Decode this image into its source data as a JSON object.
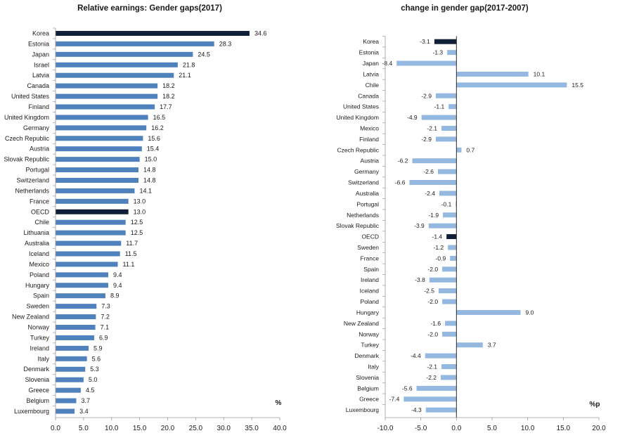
{
  "chart_data": [
    {
      "type": "bar",
      "orientation": "horizontal",
      "title": "Relative earnings: Gender gaps(2017)",
      "unit_label": "%",
      "categories": [
        "Korea",
        "Estonia",
        "Japan",
        "Israel",
        "Latvia",
        "Canada",
        "United States",
        "Finland",
        "United Kingdom",
        "Germany",
        "Czech Republic",
        "Austria",
        "Slovak Republic",
        "Portugal",
        "Switzerland",
        "Netherlands",
        "France",
        "OECD",
        "Chile",
        "Lithuania",
        "Australia",
        "Iceland",
        "Mexico",
        "Poland",
        "Hungary",
        "Spain",
        "Sweden",
        "New Zealand",
        "Norway",
        "Turkey",
        "Ireland",
        "Italy",
        "Denmark",
        "Slovenia",
        "Greece",
        "Belgium",
        "Luxembourg"
      ],
      "values": [
        34.6,
        28.3,
        24.5,
        21.8,
        21.1,
        18.2,
        18.2,
        17.7,
        16.5,
        16.2,
        15.6,
        15.4,
        15.0,
        14.8,
        14.8,
        14.1,
        13.0,
        13.0,
        12.5,
        12.5,
        11.7,
        11.5,
        11.1,
        9.4,
        9.4,
        8.9,
        7.3,
        7.2,
        7.1,
        6.9,
        5.9,
        5.6,
        5.3,
        5.0,
        4.5,
        3.7,
        3.4
      ],
      "highlight": [
        "Korea",
        "OECD"
      ],
      "xlim": [
        0,
        40
      ],
      "xticks": [
        0,
        5,
        10,
        15,
        20,
        25,
        30,
        35,
        40
      ],
      "tick_decimals": 1,
      "colors": {
        "bar": "#4f81bd",
        "highlight": "#0f1f38"
      }
    },
    {
      "type": "bar",
      "orientation": "horizontal",
      "title": "change in gender gap(2017-2007)",
      "unit_label": "%p",
      "categories": [
        "Korea",
        "Estonia",
        "Japan",
        "Latvia",
        "Chile",
        "Canada",
        "United States",
        "United Kingdom",
        "Mexico",
        "Finland",
        "Czech Republic",
        "Austria",
        "Germany",
        "Switzerland",
        "Australia",
        "Portugal",
        "Netherlands",
        "Slovak Republic",
        "OECD",
        "Sweden",
        "France",
        "Spain",
        "Ireland",
        "Iceland",
        "Poland",
        "Hungary",
        "New Zealand",
        "Norway",
        "Turkey",
        "Denmark",
        "Italy",
        "Slovenia",
        "Belgium",
        "Greece",
        "Luxembourg"
      ],
      "values": [
        -3.1,
        -1.3,
        -8.4,
        10.1,
        15.5,
        -2.9,
        -1.1,
        -4.9,
        -2.1,
        -2.9,
        0.7,
        -6.2,
        -2.6,
        -6.6,
        -2.4,
        -0.1,
        -1.9,
        -3.9,
        -1.4,
        -1.2,
        -0.9,
        -2.0,
        -3.8,
        -2.5,
        -2.0,
        9.0,
        -1.6,
        -2.0,
        3.7,
        -4.4,
        -2.1,
        -2.2,
        -5.6,
        -7.4,
        -4.3
      ],
      "highlight": [
        "Korea",
        "OECD"
      ],
      "xlim": [
        -10,
        20
      ],
      "xticks": [
        -10,
        -5,
        0,
        5,
        10,
        15,
        20
      ],
      "tick_decimals": 1,
      "colors": {
        "bar": "#95b8e0",
        "highlight": "#0f1f38"
      }
    }
  ]
}
